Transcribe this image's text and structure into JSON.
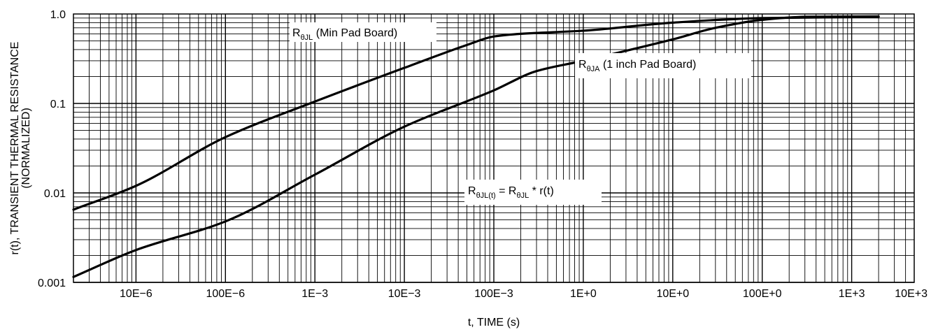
{
  "chart_data": {
    "type": "line",
    "title": "",
    "xlabel": "t, TIME (s)",
    "ylabel_line1": "r(t), TRANSIENT THERMAL RESISTANCE",
    "ylabel_line2": "(NORMALIZED)",
    "x_scale": "log",
    "y_scale": "log",
    "xlim": [
      2e-06,
      5000
    ],
    "ylim": [
      0.001,
      1.0
    ],
    "grid": true,
    "x_ticks": [
      {
        "value": 1e-05,
        "label": "10E−6"
      },
      {
        "value": 0.0001,
        "label": "100E−6"
      },
      {
        "value": 0.001,
        "label": "1E−3"
      },
      {
        "value": 0.01,
        "label": "10E−3"
      },
      {
        "value": 0.1,
        "label": "100E−3"
      },
      {
        "value": 1,
        "label": "1E+0"
      },
      {
        "value": 10,
        "label": "10E+0"
      },
      {
        "value": 100,
        "label": "100E+0"
      },
      {
        "value": 1000,
        "label": "1E+3"
      },
      {
        "value": 10000,
        "label": "10E+3"
      }
    ],
    "y_ticks": [
      {
        "value": 0.001,
        "label": "0.001"
      },
      {
        "value": 0.01,
        "label": "0.01"
      },
      {
        "value": 0.1,
        "label": "0.1"
      },
      {
        "value": 1.0,
        "label": "1.0"
      }
    ],
    "series": [
      {
        "name": "RθJL (Min Pad Board)",
        "points": [
          [
            2e-06,
            0.0065
          ],
          [
            1e-05,
            0.012
          ],
          [
            0.0001,
            0.042
          ],
          [
            0.001,
            0.105
          ],
          [
            0.01,
            0.25
          ],
          [
            0.05,
            0.45
          ],
          [
            0.1,
            0.56
          ],
          [
            0.2,
            0.6
          ],
          [
            1,
            0.65
          ],
          [
            10,
            0.8
          ],
          [
            100,
            0.9
          ],
          [
            2000,
            0.93
          ]
        ]
      },
      {
        "name": "RθJA (1 inch Pad Board)",
        "points": [
          [
            2e-06,
            0.00115
          ],
          [
            1e-05,
            0.0023
          ],
          [
            0.0001,
            0.0048
          ],
          [
            0.001,
            0.016
          ],
          [
            0.01,
            0.055
          ],
          [
            0.1,
            0.14
          ],
          [
            0.3,
            0.23
          ],
          [
            1,
            0.3
          ],
          [
            10,
            0.52
          ],
          [
            30,
            0.7
          ],
          [
            100,
            0.86
          ],
          [
            300,
            0.93
          ],
          [
            2000,
            0.94
          ]
        ]
      }
    ],
    "annotations": {
      "min_pad": {
        "main": "R",
        "sub": "θJL",
        "rest": " (Min Pad Board)"
      },
      "one_inch": {
        "main": "R",
        "sub": "θJA",
        "rest": " (1 inch Pad Board)"
      },
      "equation": {
        "r1": "R",
        "s1": "θJL(t)",
        "mid": " = R",
        "s2": "θJL",
        "tail": " * r(t)"
      }
    }
  }
}
